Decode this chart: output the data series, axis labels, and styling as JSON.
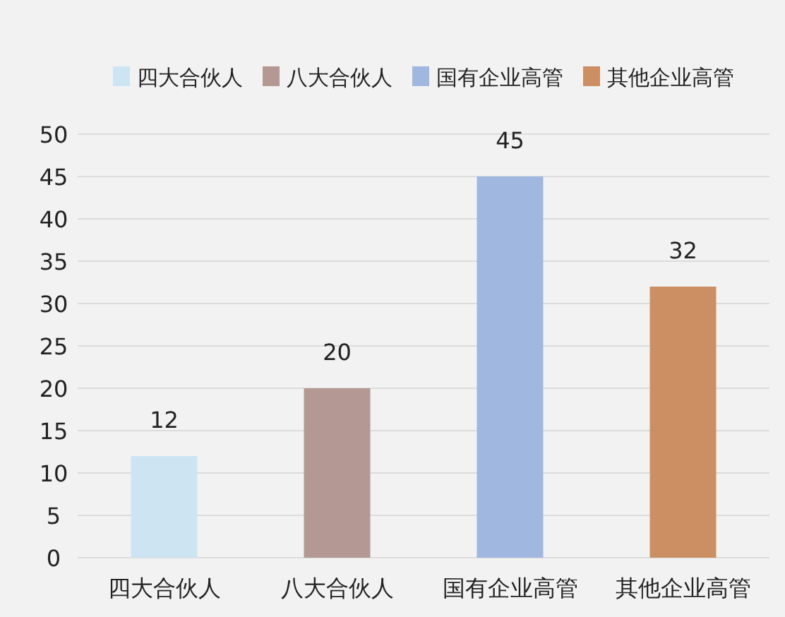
{
  "chart_data": {
    "type": "bar",
    "categories": [
      "四大合伙人",
      "八大合伙人",
      "国有企业高管",
      "其他企业高管"
    ],
    "series": [
      {
        "name": "四大合伙人",
        "color": "#cde5f3",
        "values": [
          12,
          null,
          null,
          null
        ]
      },
      {
        "name": "八大合伙人",
        "color": "#b39894",
        "values": [
          null,
          20,
          null,
          null
        ]
      },
      {
        "name": "国有企业高管",
        "color": "#a0b7e0",
        "values": [
          null,
          null,
          45,
          null
        ]
      },
      {
        "name": "其他企业高管",
        "color": "#cc8f64",
        "values": [
          null,
          null,
          null,
          32
        ]
      }
    ],
    "ylim": [
      0,
      50
    ],
    "yticks": [
      0,
      5,
      10,
      15,
      20,
      25,
      30,
      35,
      40,
      45,
      50
    ],
    "grid": "y",
    "legend": "top",
    "data_labels": true
  }
}
